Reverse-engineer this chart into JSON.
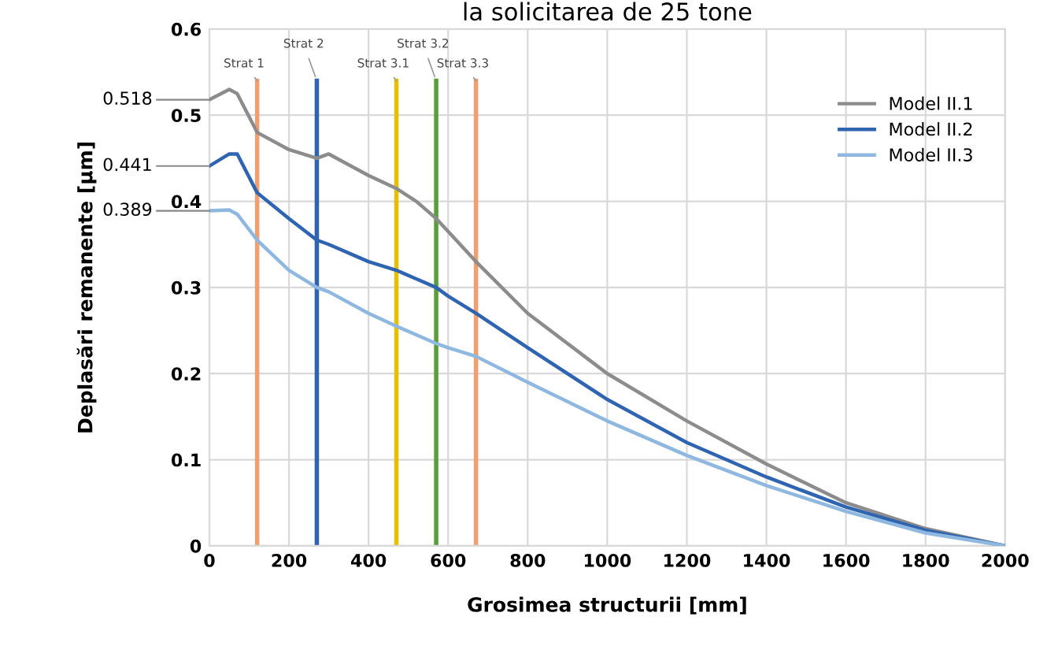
{
  "chart_data": {
    "type": "line",
    "title": "la solicitarea de 25 tone",
    "xlabel": "Grosimea structurii [mm]",
    "ylabel": "Deplasări remanente [µm]",
    "x": [
      0,
      50,
      70,
      120,
      200,
      270,
      300,
      400,
      470,
      520,
      570,
      600,
      670,
      800,
      1000,
      1200,
      1400,
      1600,
      1800,
      2000
    ],
    "series": [
      {
        "name": "Model II.1",
        "color": "#8c8c8c",
        "values": [
          0.518,
          0.53,
          0.525,
          0.48,
          0.46,
          0.45,
          0.455,
          0.43,
          0.415,
          0.4,
          0.38,
          0.365,
          0.33,
          0.27,
          0.2,
          0.145,
          0.095,
          0.05,
          0.02,
          0
        ]
      },
      {
        "name": "Model II.2",
        "color": "#2e64b0",
        "values": [
          0.441,
          0.455,
          0.455,
          0.41,
          0.38,
          0.355,
          0.35,
          0.33,
          0.32,
          0.31,
          0.3,
          0.29,
          0.27,
          0.23,
          0.17,
          0.12,
          0.08,
          0.045,
          0.018,
          0
        ]
      },
      {
        "name": "Model II.3",
        "color": "#8fb8e0",
        "values": [
          0.389,
          0.39,
          0.385,
          0.355,
          0.32,
          0.3,
          0.295,
          0.27,
          0.255,
          0.245,
          0.235,
          0.23,
          0.22,
          0.19,
          0.145,
          0.105,
          0.07,
          0.04,
          0.015,
          0
        ]
      }
    ],
    "xlim": [
      0,
      2000
    ],
    "xticks": [
      0,
      200,
      400,
      600,
      800,
      1000,
      1200,
      1400,
      1600,
      1800,
      2000
    ],
    "ylim": [
      0,
      0.6
    ],
    "yticks": [
      0,
      0.1,
      0.2,
      0.3,
      0.4,
      0.5,
      0.6
    ],
    "ref_lines": [
      {
        "axis": "x",
        "value": 120,
        "label": "Strat 1",
        "color": "#f0a070"
      },
      {
        "axis": "x",
        "value": 270,
        "label": "Strat 2",
        "color": "#2e64b0"
      },
      {
        "axis": "x",
        "value": 470,
        "label": "Strat 3.1",
        "color": "#e6c000"
      },
      {
        "axis": "x",
        "value": 570,
        "label": "Strat 3.2",
        "color": "#5a9e3a"
      },
      {
        "axis": "x",
        "value": 670,
        "label": "Strat 3.3",
        "color": "#f0a070"
      }
    ],
    "annotations": [
      "0.518",
      "0.441",
      "0.389"
    ],
    "grid": true,
    "legend": "top right",
    "marker": "none",
    "line_style": "solid"
  }
}
